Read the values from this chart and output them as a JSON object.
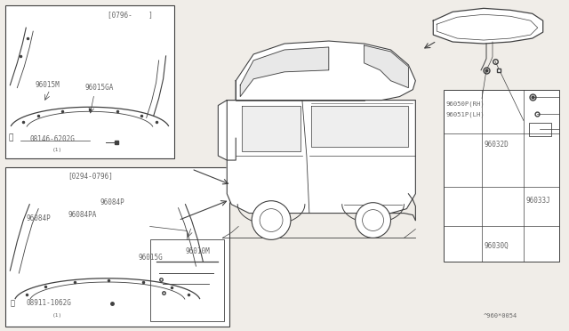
{
  "bg_color": "#f0ede8",
  "line_color": "#404040",
  "text_color": "#666666",
  "diagram_id": "^960*0054",
  "top_box_label": "[0796-    ]",
  "bottom_box_label": "[0294-0796]"
}
